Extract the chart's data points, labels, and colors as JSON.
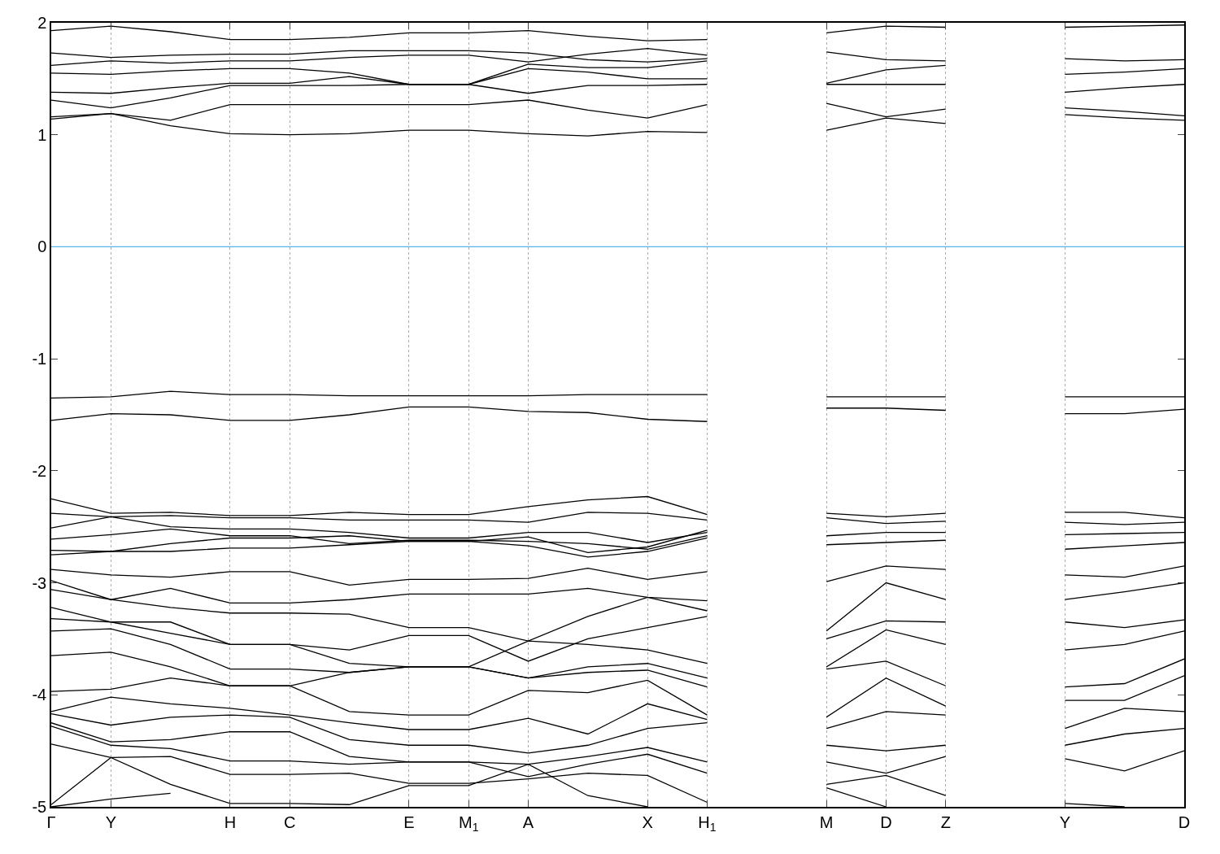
{
  "chart_data": {
    "type": "line",
    "categories": [
      "Γ",
      "Y",
      null,
      "H",
      "C",
      null,
      "E",
      "M$_{1}$",
      "A",
      null,
      "X",
      "H$_{1}$",
      null,
      "M",
      "D",
      "Z",
      null,
      "Y",
      null,
      "D"
    ],
    "ylim": [
      -5,
      2
    ],
    "yticks": [
      -5,
      -4,
      -3,
      -2,
      -1,
      0,
      1,
      2
    ],
    "grid": "x",
    "marker": "none",
    "line_style": "solid",
    "ref_lines": [
      {
        "axis": "y",
        "value": 0,
        "color": "#56b4e9"
      }
    ],
    "series": [
      {
        "color": "#000000",
        "values": [
          1.14,
          1.19,
          1.08,
          1.01,
          1.0,
          1.01,
          1.04,
          1.04,
          1.01,
          0.99,
          1.03,
          1.02,
          null,
          1.04,
          1.15,
          1.1,
          null,
          1.18,
          1.15,
          1.13
        ]
      },
      {
        "color": "#000000",
        "values": [
          1.16,
          1.19,
          1.13,
          1.27,
          1.27,
          1.27,
          1.27,
          1.27,
          1.31,
          1.22,
          1.15,
          1.27,
          null,
          1.28,
          1.16,
          1.23,
          null,
          1.24,
          1.21,
          1.17
        ]
      },
      {
        "color": "#000000",
        "values": [
          1.31,
          1.24,
          1.33,
          1.44,
          1.44,
          1.44,
          1.45,
          1.45,
          1.37,
          1.44,
          1.44,
          1.45,
          null,
          1.45,
          1.45,
          1.45,
          null,
          1.38,
          1.42,
          1.45
        ]
      },
      {
        "color": "#000000",
        "values": [
          1.38,
          1.37,
          1.42,
          1.46,
          1.46,
          1.52,
          1.45,
          1.45,
          1.59,
          1.56,
          1.5,
          1.5,
          null,
          1.46,
          1.58,
          1.62,
          null,
          1.54,
          1.56,
          1.59
        ]
      },
      {
        "color": "#000000",
        "values": [
          1.55,
          1.54,
          1.57,
          1.59,
          1.59,
          1.55,
          1.45,
          1.45,
          1.63,
          1.6,
          1.6,
          1.66,
          null,
          1.74,
          1.67,
          1.66,
          null,
          1.68,
          1.66,
          1.67
        ]
      },
      {
        "color": "#000000",
        "values": [
          1.62,
          1.66,
          1.64,
          1.66,
          1.66,
          1.69,
          1.71,
          1.71,
          1.65,
          1.72,
          1.77,
          1.71,
          null,
          1.91,
          1.97,
          1.96,
          null,
          1.96,
          1.97,
          1.98
        ]
      },
      {
        "color": "#000000",
        "values": [
          1.73,
          1.69,
          1.71,
          1.72,
          1.72,
          1.75,
          1.75,
          1.75,
          1.73,
          1.67,
          1.65,
          1.68,
          null,
          null,
          null,
          null,
          null,
          null,
          null,
          null
        ]
      },
      {
        "color": "#000000",
        "values": [
          1.93,
          1.97,
          1.92,
          1.85,
          1.85,
          1.87,
          1.91,
          1.91,
          1.93,
          1.88,
          1.84,
          1.85,
          null,
          null,
          null,
          null,
          null,
          null,
          null,
          null
        ]
      },
      {
        "color": "#000000",
        "values": [
          -1.35,
          -1.34,
          -1.29,
          -1.32,
          -1.32,
          -1.33,
          -1.33,
          -1.33,
          -1.33,
          -1.32,
          -1.32,
          -1.32,
          null,
          -1.34,
          -1.34,
          -1.34,
          null,
          -1.34,
          -1.34,
          -1.34
        ]
      },
      {
        "color": "#000000",
        "values": [
          null,
          null,
          null,
          null,
          null,
          null,
          null,
          null,
          null,
          null,
          null,
          null,
          null,
          -1.44,
          -1.44,
          -1.46,
          null,
          -1.49,
          -1.49,
          -1.45
        ]
      },
      {
        "color": "#000000",
        "values": [
          -1.55,
          -1.49,
          -1.5,
          -1.55,
          -1.55,
          -1.5,
          -1.43,
          -1.43,
          -1.47,
          -1.48,
          -1.54,
          -1.56,
          null,
          null,
          null,
          null,
          null,
          null,
          null,
          null
        ]
      },
      {
        "color": "#000000",
        "values": [
          -2.25,
          -2.38,
          -2.37,
          -2.4,
          -2.4,
          -2.37,
          -2.39,
          -2.39,
          -2.32,
          -2.26,
          -2.23,
          -2.39,
          null,
          -2.38,
          -2.41,
          -2.38,
          null,
          -2.37,
          -2.37,
          -2.42
        ]
      },
      {
        "color": "#000000",
        "values": [
          -2.38,
          -2.41,
          -2.4,
          -2.42,
          -2.42,
          -2.44,
          -2.44,
          -2.44,
          -2.46,
          -2.37,
          -2.38,
          -2.44,
          null,
          -2.42,
          -2.47,
          -2.45,
          null,
          -2.46,
          -2.48,
          -2.46
        ]
      },
      {
        "color": "#000000",
        "values": [
          -2.51,
          -2.41,
          -2.5,
          -2.52,
          -2.52,
          -2.55,
          -2.6,
          -2.6,
          -2.55,
          -2.55,
          -2.64,
          -2.55,
          null,
          -2.58,
          -2.55,
          -2.55,
          null,
          -2.57,
          -2.56,
          -2.55
        ]
      },
      {
        "color": "#000000",
        "values": [
          -2.61,
          -2.57,
          -2.52,
          -2.58,
          -2.58,
          -2.65,
          -2.62,
          -2.62,
          -2.63,
          -2.65,
          -2.7,
          -2.58,
          null,
          -2.66,
          -2.64,
          -2.62,
          null,
          -2.7,
          -2.67,
          -2.64
        ]
      },
      {
        "color": "#000000",
        "values": [
          -2.71,
          -2.72,
          -2.65,
          -2.6,
          -2.6,
          -2.58,
          -2.63,
          -2.63,
          -2.59,
          -2.73,
          -2.68,
          -2.53,
          null,
          null,
          null,
          null,
          null,
          null,
          null,
          null
        ]
      },
      {
        "color": "#000000",
        "values": [
          -2.75,
          -2.72,
          -2.72,
          -2.69,
          -2.69,
          -2.66,
          -2.63,
          -2.63,
          -2.67,
          -2.77,
          -2.72,
          -2.6,
          null,
          null,
          null,
          null,
          null,
          null,
          null,
          null
        ]
      },
      {
        "color": "#000000",
        "values": [
          -2.88,
          -2.93,
          -2.95,
          -2.9,
          -2.9,
          -3.02,
          -2.97,
          -2.97,
          -2.96,
          -2.87,
          -2.97,
          -2.9,
          null,
          -2.99,
          -2.85,
          -2.88,
          null,
          -2.93,
          -2.95,
          -2.85
        ]
      },
      {
        "color": "#000000",
        "values": [
          -2.98,
          -3.15,
          -3.05,
          -3.18,
          -3.18,
          -3.15,
          -3.1,
          -3.1,
          -3.1,
          -3.05,
          -3.13,
          -3.16,
          null,
          -3.43,
          -3.0,
          -3.15,
          null,
          -3.15,
          -3.08,
          -3.0
        ]
      },
      {
        "color": "#000000",
        "values": [
          -3.06,
          -3.15,
          -3.22,
          -3.27,
          -3.27,
          -3.28,
          -3.4,
          -3.4,
          -3.52,
          -3.3,
          -3.13,
          -3.25,
          null,
          -3.5,
          -3.34,
          -3.35,
          null,
          -3.35,
          -3.4,
          -3.33
        ]
      },
      {
        "color": "#000000",
        "values": [
          -3.22,
          -3.35,
          -3.35,
          -3.55,
          -3.55,
          -3.6,
          -3.47,
          -3.47,
          -3.7,
          -3.5,
          -3.4,
          -3.3,
          null,
          -3.75,
          -3.42,
          -3.55,
          null,
          -3.6,
          -3.55,
          -3.43
        ]
      },
      {
        "color": "#000000",
        "values": [
          -3.32,
          -3.35,
          -3.45,
          -3.55,
          -3.55,
          -3.72,
          -3.75,
          -3.75,
          -3.52,
          -3.55,
          -3.6,
          -3.72,
          null,
          -3.77,
          -3.7,
          -3.92,
          null,
          -3.93,
          -3.9,
          -3.68
        ]
      },
      {
        "color": "#000000",
        "values": [
          -3.43,
          -3.41,
          -3.55,
          -3.77,
          -3.77,
          -3.8,
          -3.75,
          -3.75,
          -3.85,
          -3.75,
          -3.72,
          -3.85,
          null,
          -4.2,
          -3.85,
          -4.1,
          null,
          -4.05,
          -4.05,
          -3.83
        ]
      },
      {
        "color": "#000000",
        "values": [
          -3.65,
          -3.62,
          -3.75,
          -3.92,
          -3.92,
          -3.8,
          -3.75,
          -3.75,
          -3.85,
          -3.8,
          -3.78,
          -3.93,
          null,
          -4.3,
          -4.15,
          -4.18,
          null,
          -4.3,
          -4.12,
          -4.15
        ]
      },
      {
        "color": "#000000",
        "values": [
          -3.97,
          -3.95,
          -3.85,
          -3.92,
          -3.92,
          -4.15,
          -4.18,
          -4.18,
          -3.96,
          -3.98,
          -3.87,
          -4.18,
          null,
          -4.45,
          -4.5,
          -4.45,
          null,
          -4.45,
          -4.35,
          -4.3
        ]
      },
      {
        "color": "#000000",
        "values": [
          -4.15,
          -4.02,
          -4.08,
          -4.12,
          -4.18,
          -4.25,
          -4.31,
          -4.31,
          -4.21,
          -4.35,
          -4.08,
          -4.22,
          null,
          -4.6,
          -4.7,
          -4.55,
          null,
          -4.57,
          -4.68,
          -4.5
        ]
      },
      {
        "color": "#000000",
        "values": [
          -4.17,
          -4.27,
          -4.2,
          -4.18,
          -4.2,
          -4.4,
          -4.45,
          -4.45,
          -4.52,
          -4.45,
          -4.3,
          -4.25,
          null,
          -4.8,
          -4.72,
          -4.9,
          null,
          -4.97,
          -5.0,
          null
        ]
      },
      {
        "color": "#000000",
        "values": [
          -4.25,
          -4.42,
          -4.4,
          -4.33,
          -4.33,
          -4.55,
          -4.6,
          -4.6,
          -4.62,
          -4.55,
          -4.47,
          -4.6,
          null,
          -4.83,
          -5.0,
          null,
          null,
          null,
          null,
          null
        ]
      },
      {
        "color": "#000000",
        "values": [
          -4.28,
          -4.45,
          -4.48,
          -4.59,
          -4.59,
          -4.62,
          -4.6,
          -4.6,
          -4.73,
          -4.62,
          -4.53,
          -4.7,
          null,
          null,
          null,
          null,
          null,
          null,
          null,
          null
        ]
      },
      {
        "color": "#000000",
        "values": [
          -4.44,
          -4.56,
          -4.55,
          -4.71,
          -4.71,
          -4.7,
          -4.79,
          -4.79,
          -4.75,
          -4.7,
          -4.72,
          -4.96,
          null,
          null,
          null,
          null,
          null,
          null,
          null,
          null
        ]
      },
      {
        "color": "#000000",
        "values": [
          -4.98,
          -4.56,
          -4.8,
          -4.97,
          -4.97,
          -4.98,
          -4.81,
          -4.81,
          -4.62,
          -4.9,
          -5.0,
          null,
          null,
          null,
          null,
          null,
          null,
          null,
          null,
          null
        ]
      },
      {
        "color": "#000000",
        "values": [
          -5.0,
          -4.93,
          -4.88,
          null,
          null,
          null,
          null,
          null,
          null,
          null,
          null,
          null,
          null,
          null,
          null,
          null,
          null,
          null,
          null,
          null
        ]
      }
    ]
  }
}
